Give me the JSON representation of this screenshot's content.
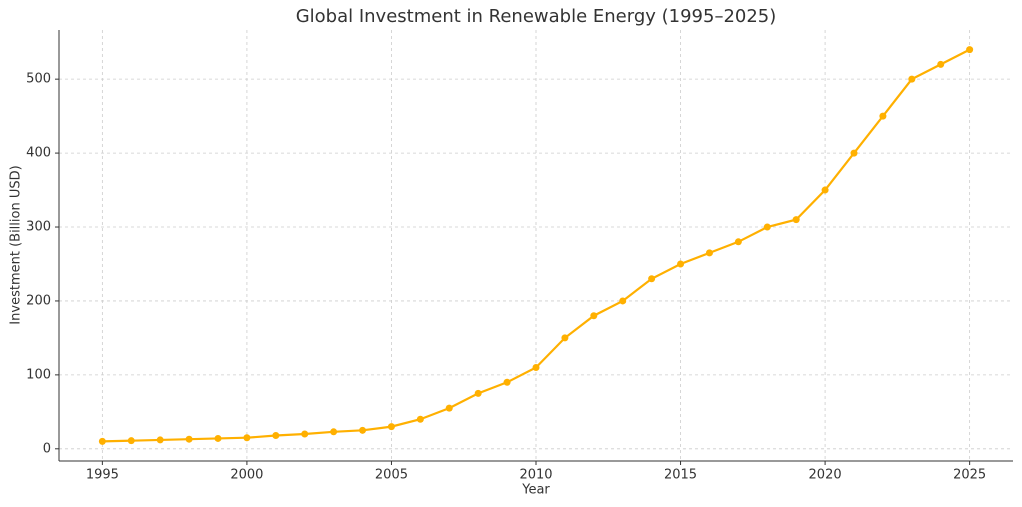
{
  "chart_data": {
    "type": "line",
    "title": "Global Investment in Renewable Energy (1995–2025)",
    "x_label": "Year",
    "y_label": "Investment (Billion USD)",
    "x": [
      1995,
      1996,
      1997,
      1998,
      1999,
      2000,
      2001,
      2002,
      2003,
      2004,
      2005,
      2006,
      2007,
      2008,
      2009,
      2010,
      2011,
      2012,
      2013,
      2014,
      2015,
      2016,
      2017,
      2018,
      2019,
      2020,
      2021,
      2022,
      2023,
      2024,
      2025
    ],
    "series": [
      {
        "name": "Investment",
        "color": "#ffb000",
        "values": [
          10,
          11,
          12,
          13,
          14,
          15,
          18,
          20,
          23,
          25,
          30,
          40,
          55,
          75,
          90,
          110,
          150,
          180,
          200,
          230,
          250,
          265,
          280,
          300,
          310,
          350,
          400,
          450,
          500,
          520,
          540
        ]
      }
    ],
    "xlim": [
      1993.5,
      2026.5
    ],
    "xticks": [
      1995,
      2000,
      2005,
      2010,
      2015,
      2020,
      2025
    ],
    "ylim": [
      -16.5,
      566.5
    ],
    "yticks": [
      0,
      100,
      200,
      300,
      400,
      500
    ],
    "grid": true
  }
}
